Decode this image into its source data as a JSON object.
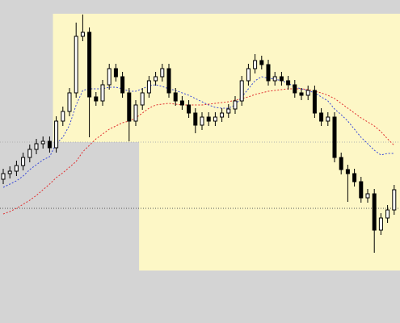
{
  "chart_data": {
    "type": "candlestick",
    "ylim": [
      0,
      400
    ],
    "background": "#d4d4d4",
    "zone_color": "#fdf7c6",
    "up_color": "#ffffff",
    "down_color": "#000000",
    "outline_color": "#000000",
    "open": [
      178,
      185,
      188,
      195,
      205,
      215,
      222,
      225,
      217,
      250,
      262,
      285,
      355,
      360,
      280,
      275,
      295,
      315,
      305,
      285,
      250,
      270,
      285,
      300,
      305,
      315,
      285,
      275,
      270,
      260,
      245,
      255,
      250,
      255,
      260,
      265,
      275,
      300,
      315,
      325,
      320,
      300,
      305,
      300,
      295,
      285,
      282,
      288,
      260,
      250,
      255,
      205,
      190,
      185,
      175,
      155,
      160,
      115,
      130,
      140
    ],
    "high": [
      191,
      194,
      201,
      211,
      221,
      228,
      231,
      231,
      256,
      268,
      291,
      372,
      382,
      366,
      286,
      301,
      321,
      321,
      311,
      291,
      276,
      291,
      306,
      311,
      321,
      321,
      291,
      281,
      276,
      266,
      261,
      261,
      261,
      266,
      271,
      281,
      306,
      321,
      333,
      331,
      326,
      311,
      311,
      306,
      301,
      291,
      294,
      294,
      266,
      261,
      261,
      211,
      196,
      191,
      181,
      166,
      166,
      136,
      146,
      171
    ],
    "low": [
      172,
      179,
      182,
      189,
      199,
      209,
      216,
      211,
      211,
      244,
      256,
      279,
      349,
      230,
      269,
      269,
      289,
      299,
      279,
      225,
      244,
      264,
      279,
      294,
      299,
      279,
      269,
      264,
      254,
      235,
      239,
      244,
      244,
      249,
      254,
      259,
      269,
      294,
      309,
      314,
      294,
      294,
      294,
      289,
      279,
      276,
      276,
      254,
      244,
      244,
      199,
      184,
      150,
      169,
      149,
      149,
      87,
      109,
      124,
      134
    ],
    "close": [
      185,
      188,
      195,
      205,
      215,
      222,
      225,
      217,
      250,
      262,
      285,
      355,
      360,
      280,
      275,
      295,
      315,
      305,
      285,
      250,
      270,
      285,
      300,
      305,
      315,
      285,
      275,
      270,
      260,
      245,
      255,
      250,
      255,
      260,
      265,
      275,
      300,
      315,
      325,
      320,
      300,
      305,
      300,
      295,
      285,
      282,
      288,
      260,
      250,
      255,
      205,
      190,
      185,
      175,
      155,
      160,
      115,
      130,
      140,
      165
    ],
    "series": [
      {
        "color": "#3b4bd8",
        "values": [
          168,
          172,
          176,
          182,
          190,
          196,
          202,
          206,
          222,
          230,
          245,
          270,
          288,
          290,
          290,
          290,
          292,
          292,
          290,
          287,
          287,
          290,
          294,
          295,
          293,
          290,
          288,
          285,
          282,
          278,
          274,
          270,
          267,
          266,
          266,
          270,
          280,
          290,
          300,
          305,
          303,
          302,
          300,
          297,
          292,
          290,
          288,
          285,
          280,
          275,
          265,
          258,
          250,
          240,
          230,
          222,
          214,
          208,
          210,
          210
        ]
      },
      {
        "color": "#e03030",
        "values": [
          135,
          138,
          142,
          147,
          152,
          158,
          165,
          172,
          180,
          186,
          193,
          200,
          212,
          220,
          228,
          234,
          240,
          244,
          248,
          250,
          254,
          260,
          266,
          270,
          271,
          272,
          271,
          270,
          270,
          270,
          270,
          271,
          272,
          273,
          274,
          276,
          278,
          280,
          283,
          285,
          287,
          288,
          289,
          290,
          290,
          290,
          289,
          287,
          285,
          282,
          278,
          272,
          266,
          260,
          254,
          249,
          244,
          237,
          228,
          220
        ]
      }
    ],
    "zones": [
      {
        "from": 8,
        "low": 224,
        "high": 383
      },
      {
        "from": 21,
        "low": 65,
        "high": 224
      }
    ],
    "levels": [
      {
        "value": 224,
        "color": "#b0b0b0"
      },
      {
        "value": 142,
        "color": "#555555"
      }
    ]
  }
}
